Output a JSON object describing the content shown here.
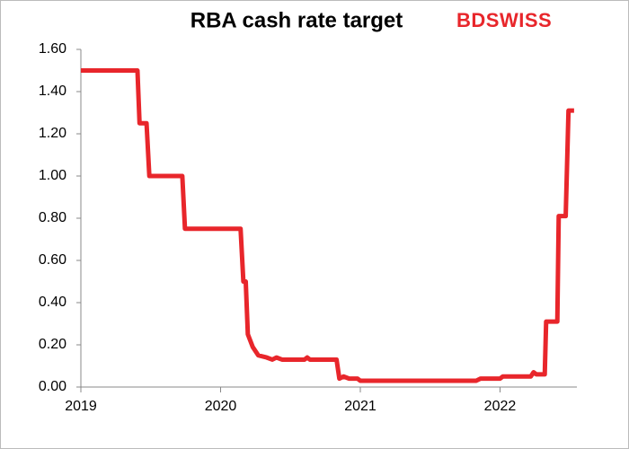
{
  "chart_data": {
    "type": "line",
    "title": "RBA cash rate target",
    "brand": "BDSWISS",
    "x": [
      2019.0,
      2019.405,
      2019.42,
      2019.47,
      2019.49,
      2019.726,
      2019.745,
      2020.143,
      2020.163,
      2020.18,
      2020.195,
      2020.23,
      2020.27,
      2020.33,
      2020.37,
      2020.4,
      2020.44,
      2020.6,
      2020.62,
      2020.64,
      2020.83,
      2020.85,
      2020.88,
      2020.92,
      2020.98,
      2021.0,
      2021.83,
      2021.86,
      2022.0,
      2022.02,
      2022.22,
      2022.24,
      2022.26,
      2022.32,
      2022.33,
      2022.41,
      2022.42,
      2022.47,
      2022.49,
      2022.53
    ],
    "series": [
      {
        "name": "RBA cash rate target",
        "color": "#e8262b",
        "values": [
          1.5,
          1.5,
          1.25,
          1.25,
          1.0,
          1.0,
          0.75,
          0.75,
          0.5,
          0.5,
          0.25,
          0.19,
          0.15,
          0.14,
          0.13,
          0.14,
          0.13,
          0.13,
          0.14,
          0.13,
          0.13,
          0.04,
          0.05,
          0.04,
          0.04,
          0.03,
          0.03,
          0.04,
          0.04,
          0.05,
          0.05,
          0.07,
          0.06,
          0.06,
          0.31,
          0.31,
          0.81,
          0.81,
          1.31,
          1.31
        ]
      }
    ],
    "xlim": [
      2019,
      2022.55
    ],
    "xticks": [
      2019,
      2020,
      2021,
      2022
    ],
    "ylim": [
      0,
      1.6
    ],
    "yticks": [
      {
        "value": 0,
        "label": "0.00"
      },
      {
        "value": 0.2,
        "label": "0.20"
      },
      {
        "value": 0.4,
        "label": "0.40"
      },
      {
        "value": 0.6,
        "label": "0.60"
      },
      {
        "value": 0.8,
        "label": "0.80"
      },
      {
        "value": 1.0,
        "label": "1.00"
      },
      {
        "value": 1.2,
        "label": "1.20"
      },
      {
        "value": 1.4,
        "label": "1.40"
      },
      {
        "value": 1.6,
        "label": "1.60"
      }
    ],
    "grid": false
  }
}
